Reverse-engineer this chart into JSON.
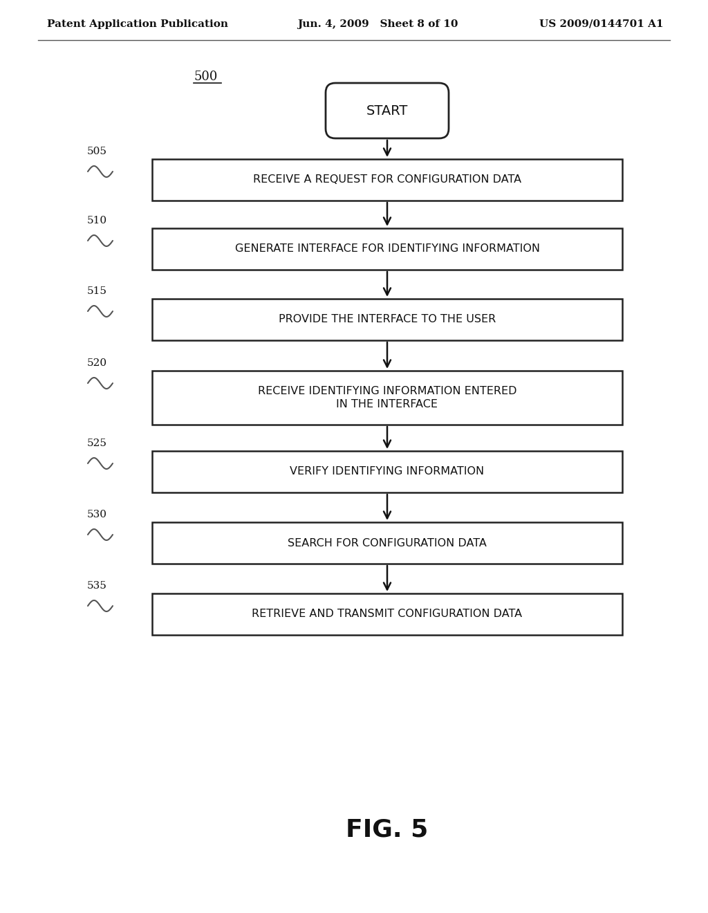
{
  "bg_color": "#ffffff",
  "header_left": "Patent Application Publication",
  "header_mid": "Jun. 4, 2009   Sheet 8 of 10",
  "header_right": "US 2009/0144701 A1",
  "fig_label": "500",
  "start_label": "START",
  "boxes": [
    {
      "label": "505",
      "text": "RECEIVE A REQUEST FOR CONFIGURATION DATA"
    },
    {
      "label": "510",
      "text": "GENERATE INTERFACE FOR IDENTIFYING INFORMATION"
    },
    {
      "label": "515",
      "text": "PROVIDE THE INTERFACE TO THE USER"
    },
    {
      "label": "520",
      "text": "RECEIVE IDENTIFYING INFORMATION ENTERED\nIN THE INTERFACE"
    },
    {
      "label": "525",
      "text": "VERIFY IDENTIFYING INFORMATION"
    },
    {
      "label": "530",
      "text": "SEARCH FOR CONFIGURATION DATA"
    },
    {
      "label": "535",
      "text": "RETRIEVE AND TRANSMIT CONFIGURATION DATA"
    }
  ],
  "caption": "FIG. 5",
  "box_color": "#ffffff",
  "box_edge_color": "#222222",
  "text_color": "#111111",
  "arrow_color": "#111111",
  "header_line_color": "#555555"
}
